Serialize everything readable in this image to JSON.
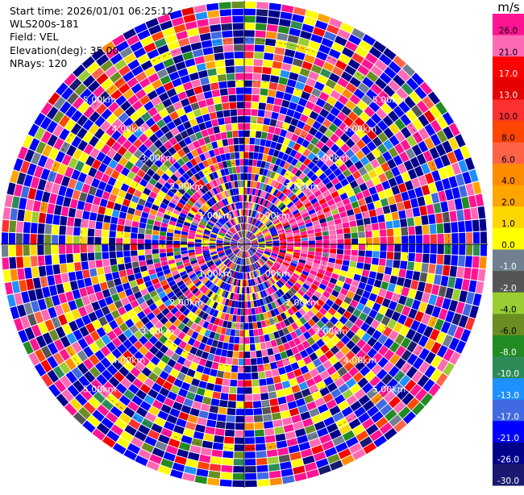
{
  "header": {
    "start_time": "Start time: 2026/01/01 06:25:12",
    "instrument": "WLS200s-181",
    "field": "Field: VEL",
    "elevation": "Elevation(deg): 35.00",
    "nrays": "NRays: 120"
  },
  "chart_data": {
    "type": "heatmap",
    "projection": "polar PPI",
    "field": "VEL",
    "units": "m/s",
    "n_rays": 120,
    "elevation_deg": 35.0,
    "range_rings_km": [
      1.0,
      2.0,
      3.0,
      4.0,
      5.0
    ],
    "ring_labels": [
      "1.00km",
      "2.00km",
      "3.00km",
      "4.00km",
      "5.00km"
    ],
    "max_range_km": 5.95,
    "colorbar": {
      "unit_label": "m/s",
      "range": [
        -30.0,
        30.0
      ],
      "tick_labels": [
        "26.0",
        "21.0",
        "17.0",
        "13.0",
        "10.0",
        "8.0",
        "6.0",
        "4.0",
        "2.0",
        "1.0",
        "0.0",
        "-1.0",
        "-2.0",
        "-4.0",
        "-6.0",
        "-8.0",
        "-10.0",
        "-13.0",
        "-17.0",
        "-21.0",
        "-26.0",
        "-30.0"
      ],
      "colors": [
        "#ff1493",
        "#ff69b4",
        "#ff0000",
        "#e60000",
        "#ff3030",
        "#ff4500",
        "#ff6347",
        "#ff8c00",
        "#ffa500",
        "#ffd700",
        "#ffff00",
        "#708090",
        "#555555",
        "#9acd32",
        "#6b8e23",
        "#228b22",
        "#2e8b57",
        "#1e90ff",
        "#4169e1",
        "#0000ff",
        "#00008b",
        "#191970"
      ]
    },
    "features": [
      {
        "description": "positive velocity (pink) patch",
        "azimuth_deg": 70,
        "range_km": 1.8
      },
      {
        "description": "positive velocity (pink) patch",
        "azimuth_deg": 110,
        "range_km": 1.6
      }
    ]
  }
}
